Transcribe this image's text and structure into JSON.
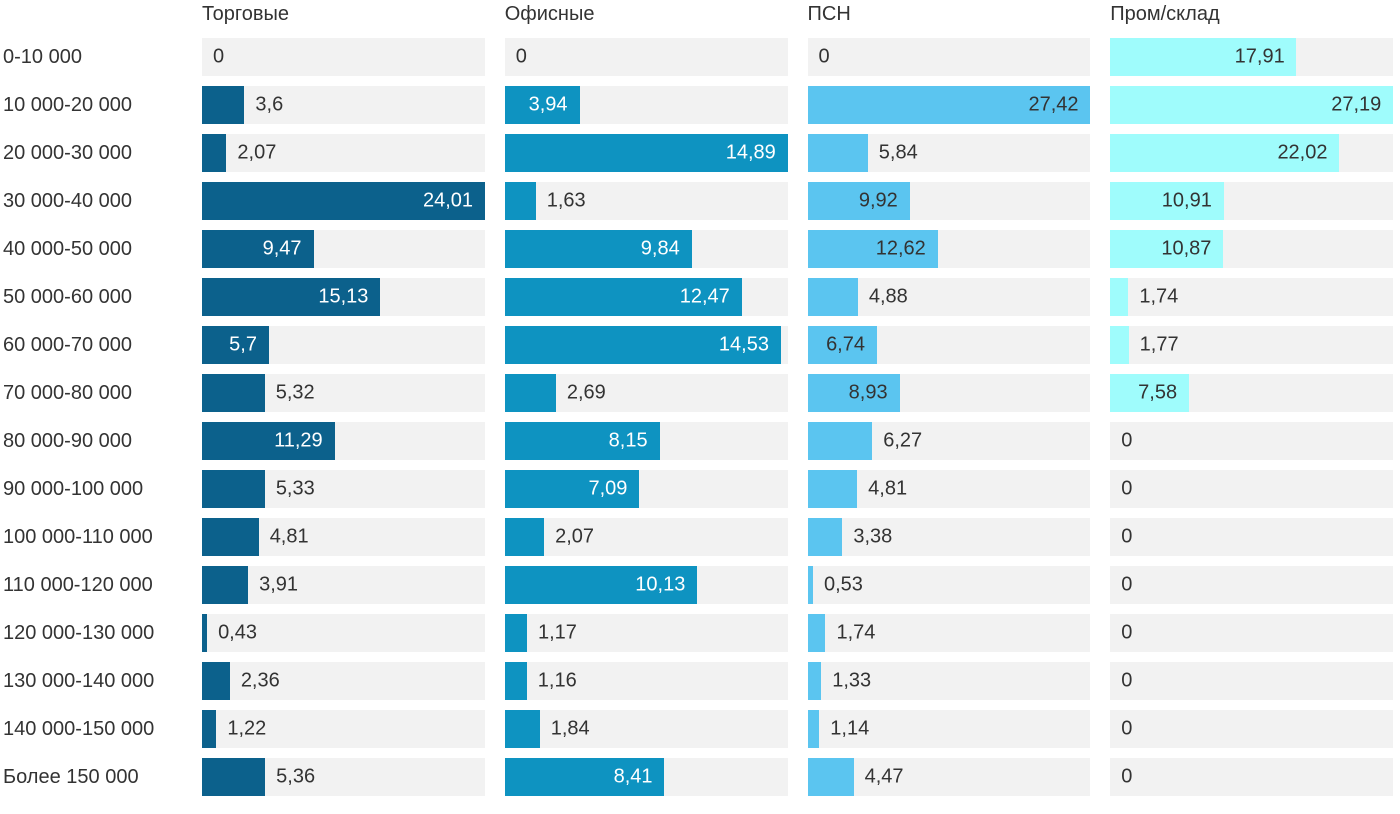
{
  "chart_data": {
    "type": "bar",
    "orientation": "horizontal",
    "title": "",
    "xlabel": "",
    "ylabel": "",
    "grid": false,
    "legend_position": "column-headers",
    "scale_note": "each column normalized to its own max value",
    "decimal_separator": ",",
    "track_color": "#F2F2F2",
    "text_color": "#333333",
    "categories": [
      "0-10 000",
      "10 000-20 000",
      "20 000-30 000",
      "30 000-40 000",
      "40 000-50 000",
      "50 000-60 000",
      "60 000-70 000",
      "70 000-80 000",
      "80 000-90 000",
      "90 000-100 000",
      "100 000-110 000",
      "110 000-120 000",
      "120 000-130 000",
      "130 000-140 000",
      "140 000-150 000",
      "Более 150 000"
    ],
    "series": [
      {
        "name": "Торговые",
        "color": "#0C618C",
        "inside_label_color": "#FFFFFF",
        "values": [
          0,
          3.6,
          2.07,
          24.01,
          9.47,
          15.13,
          5.7,
          5.32,
          11.29,
          5.33,
          4.81,
          3.91,
          0.43,
          2.36,
          1.22,
          5.36
        ],
        "labels": [
          "0",
          "3,6",
          "2,07",
          "24,01",
          "9,47",
          "15,13",
          "5,7",
          "5,32",
          "11,29",
          "5,33",
          "4,81",
          "3,91",
          "0,43",
          "2,36",
          "1,22",
          "5,36"
        ]
      },
      {
        "name": "Офисные",
        "color": "#0E93C1",
        "inside_label_color": "#FFFFFF",
        "values": [
          0,
          3.94,
          14.89,
          1.63,
          9.84,
          12.47,
          14.53,
          2.69,
          8.15,
          7.09,
          2.07,
          10.13,
          1.17,
          1.16,
          1.84,
          8.41
        ],
        "labels": [
          "0",
          "3,94",
          "14,89",
          "1,63",
          "9,84",
          "12,47",
          "14,53",
          "2,69",
          "8,15",
          "7,09",
          "2,07",
          "10,13",
          "1,17",
          "1,16",
          "1,84",
          "8,41"
        ]
      },
      {
        "name": "ПСН",
        "color": "#5BC5F0",
        "inside_label_color": "#333333",
        "values": [
          0,
          27.42,
          5.84,
          9.92,
          12.62,
          4.88,
          6.74,
          8.93,
          6.27,
          4.81,
          3.38,
          0.53,
          1.74,
          1.33,
          1.14,
          4.47
        ],
        "labels": [
          "0",
          "27,42",
          "5,84",
          "9,92",
          "12,62",
          "4,88",
          "6,74",
          "8,93",
          "6,27",
          "4,81",
          "3,38",
          "0,53",
          "1,74",
          "1,33",
          "1,14",
          "4,47"
        ]
      },
      {
        "name": "Пром/склад",
        "color": "#9FFCFC",
        "inside_label_color": "#333333",
        "values": [
          17.91,
          27.19,
          22.02,
          10.91,
          10.87,
          1.74,
          1.77,
          7.58,
          0,
          0,
          0,
          0,
          0,
          0,
          0,
          0
        ],
        "labels": [
          "17,91",
          "27,19",
          "22,02",
          "10,91",
          "10,87",
          "1,74",
          "1,77",
          "7,58",
          "0",
          "0",
          "0",
          "0",
          "0",
          "0",
          "0",
          "0"
        ]
      }
    ]
  }
}
